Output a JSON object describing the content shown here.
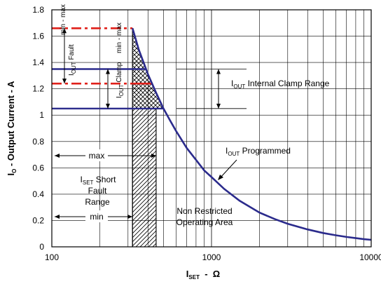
{
  "chart_data": {
    "type": "line",
    "xscale": "log",
    "xlim": [
      100,
      10000
    ],
    "ylim": [
      0,
      1.8
    ],
    "grid": true,
    "x_ticks": [
      "100",
      "1000",
      "10000"
    ],
    "y_ticks": [
      "0",
      "0.2",
      "0.4",
      "0.6",
      "0.8",
      "1",
      "1.2",
      "1.4",
      "1.6",
      "1.8"
    ],
    "y_tick_values": [
      0,
      0.2,
      0.4,
      0.6,
      0.8,
      1.0,
      1.2,
      1.4,
      1.6,
      1.8
    ],
    "xlabel": {
      "main": "I",
      "sub": "SET",
      "rest": "  -  Ω"
    },
    "ylabel": {
      "main": "I",
      "sub": "O",
      "rest": " - Output Current - A"
    },
    "series": [
      {
        "x": [
          320,
          350,
          400,
          450,
          500,
          550,
          600,
          700,
          800,
          900,
          1000,
          1200,
          1500,
          2000,
          2500,
          3000,
          4000,
          5000,
          6000,
          7000,
          8000,
          9000,
          10000
        ],
        "y": [
          1.66,
          1.5,
          1.31,
          1.17,
          1.05,
          0.96,
          0.88,
          0.75,
          0.66,
          0.58,
          0.53,
          0.44,
          0.35,
          0.26,
          0.21,
          0.175,
          0.132,
          0.105,
          0.088,
          0.075,
          0.066,
          0.058,
          0.053
        ]
      }
    ],
    "levels": {
      "fault_max": 1.66,
      "fault_min": 1.24,
      "clamp_max": 1.35,
      "clamp_min": 1.05
    },
    "short_fault_range": {
      "min": 320,
      "max": 450
    },
    "annotations": {
      "fault_label": {
        "main": "I",
        "sub": "OUT",
        "mid": " Fault",
        "tail": "min - max"
      },
      "clamp_label": {
        "main": "I",
        "sub": "OUT",
        "mid": " Clamp",
        "tail": "min - max"
      },
      "internal_clamp": {
        "main": "I",
        "sub": "OUT",
        "rest": " Internal Clamp Range"
      },
      "programmed": {
        "main": "I",
        "sub": "OUT",
        "rest": " Programmed"
      },
      "max": "max",
      "min": "min",
      "short_fault": {
        "line1_main": "I",
        "line1_sub": "SET",
        "line1_rest": " Short",
        "line2": "Fault",
        "line3": "Range"
      },
      "non_restricted": {
        "line1": "Non Restricted",
        "line2": "Operating Area"
      }
    },
    "colors": {
      "curve": "#2b2b8c",
      "fault": "#e0201a",
      "grid": "#000000"
    }
  }
}
